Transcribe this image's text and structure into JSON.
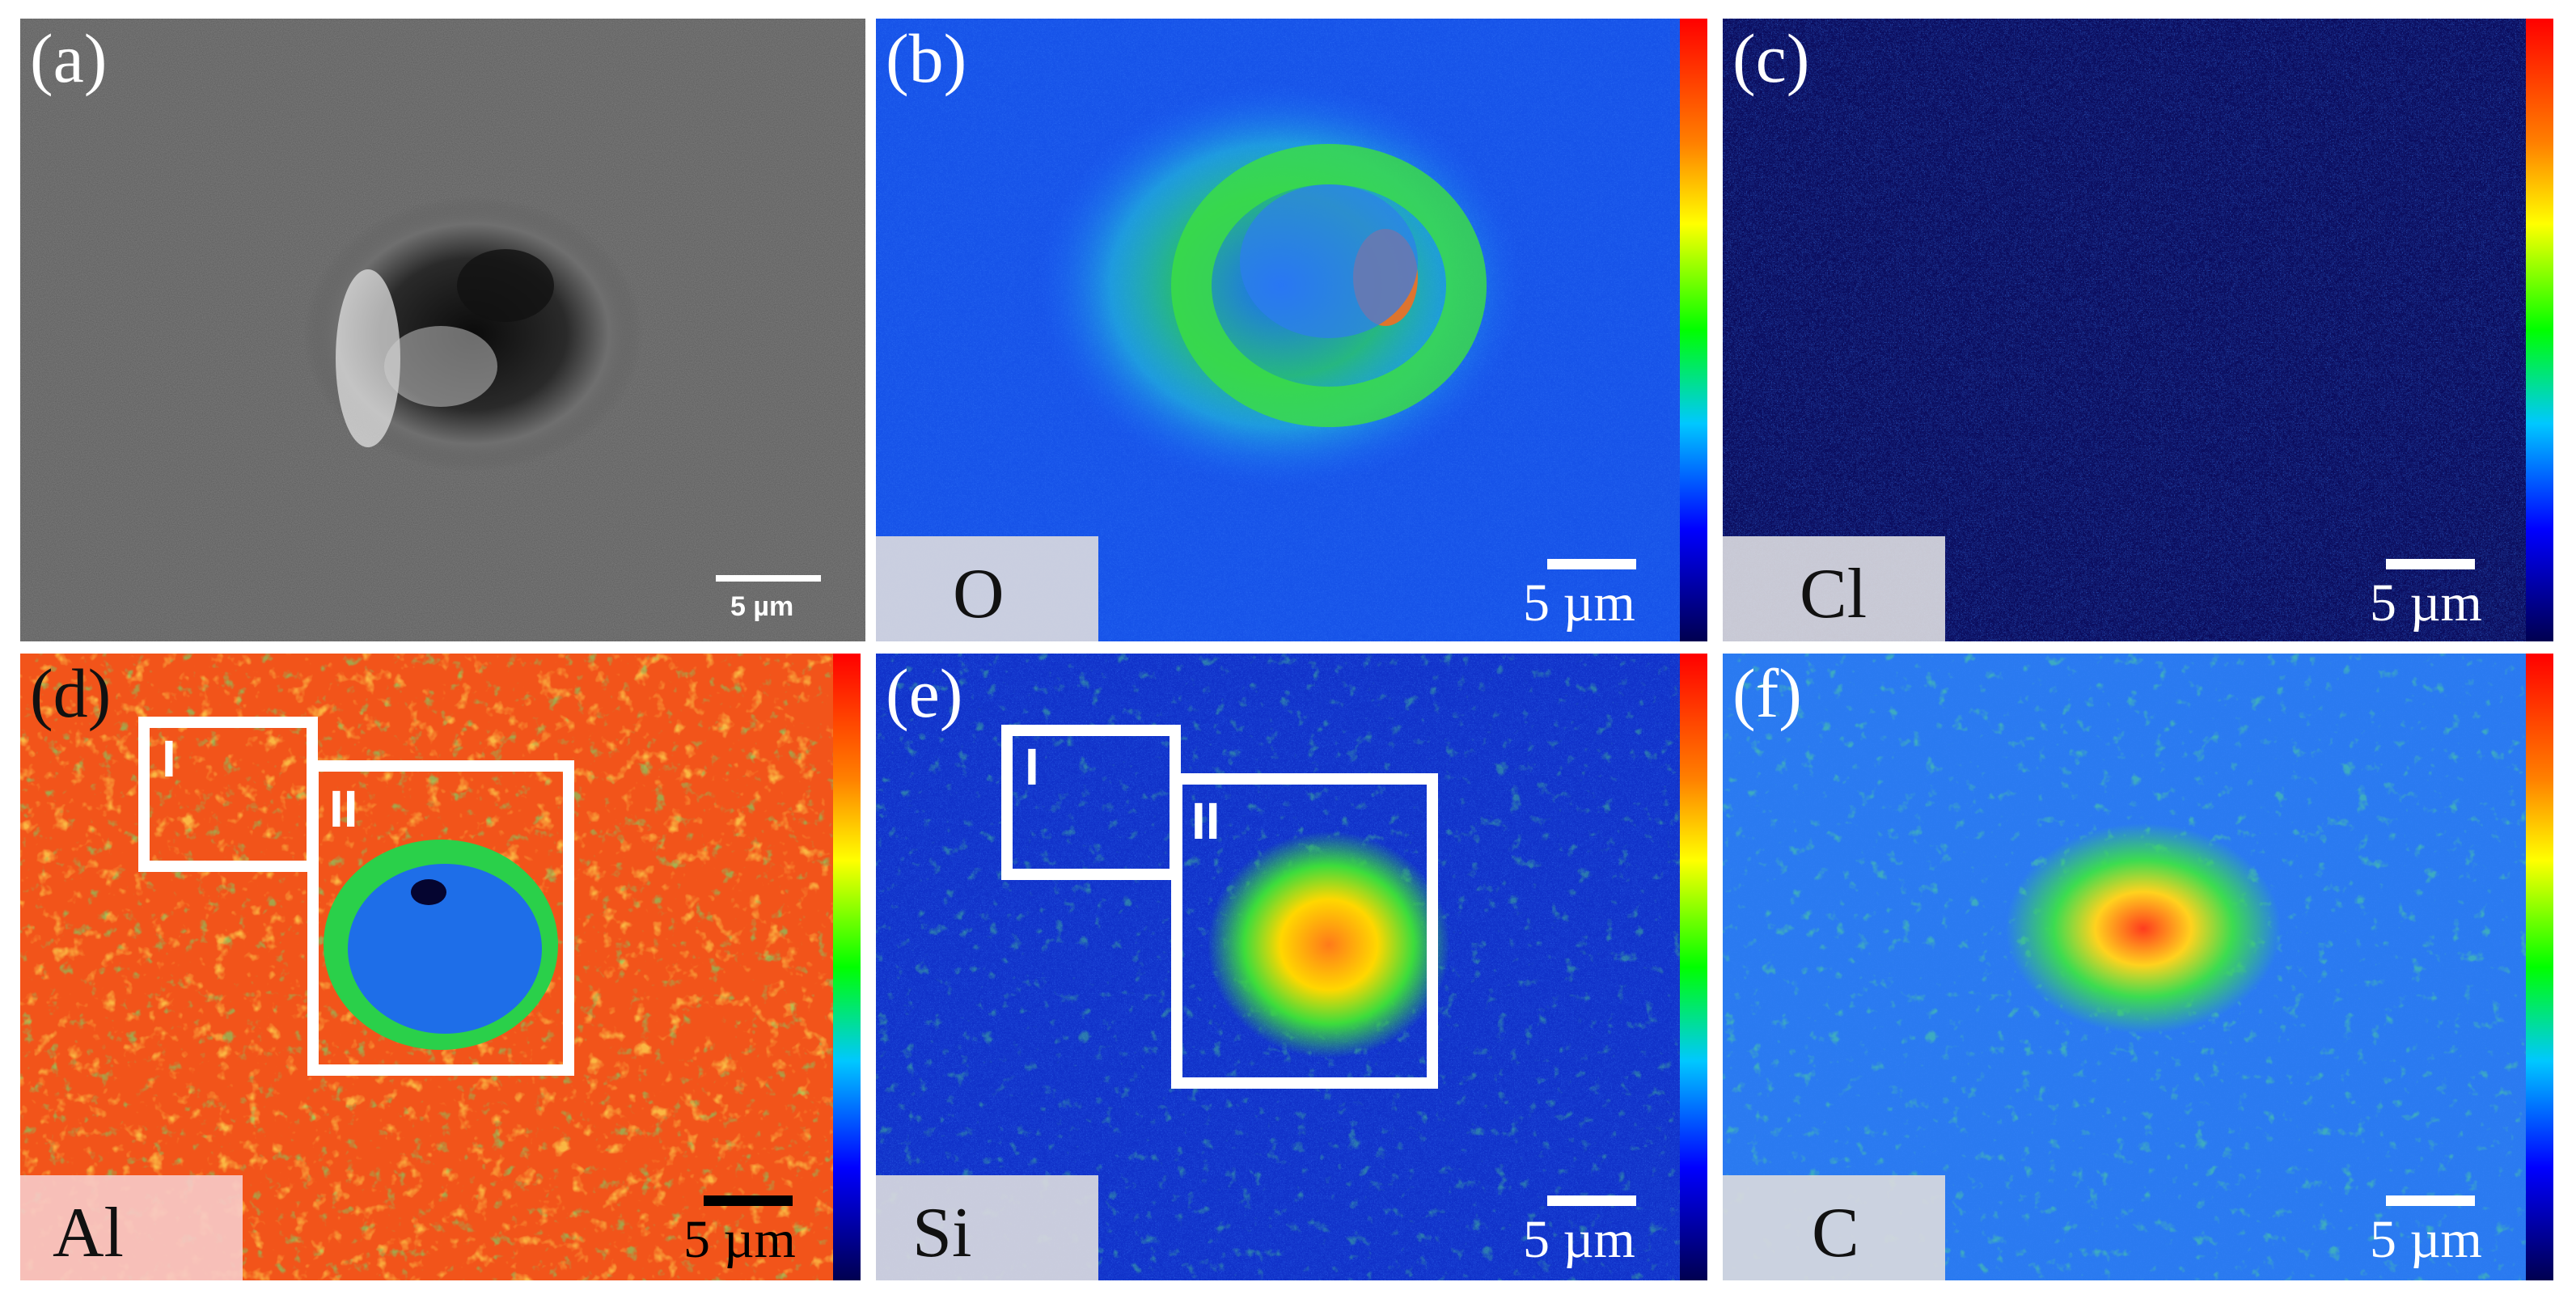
{
  "figure": {
    "panels": [
      {
        "id": "a",
        "label": "(a)",
        "type": "SEM",
        "scale": "5 µm"
      },
      {
        "id": "b",
        "label": "(b)",
        "element": "O",
        "scale": "5 µm"
      },
      {
        "id": "c",
        "label": "(c)",
        "element": "Cl",
        "scale": "5 µm"
      },
      {
        "id": "d",
        "label": "(d)",
        "element": "Al",
        "scale": "5 µm",
        "regions": [
          "I",
          "II"
        ]
      },
      {
        "id": "e",
        "label": "(e)",
        "element": "Si",
        "scale": "5 µm",
        "regions": [
          "I",
          "II"
        ]
      },
      {
        "id": "f",
        "label": "(f)",
        "element": "C",
        "scale": "5 µm"
      }
    ],
    "colorbar": {
      "top_color": "#ff0000",
      "bottom_color": "#000050"
    }
  }
}
